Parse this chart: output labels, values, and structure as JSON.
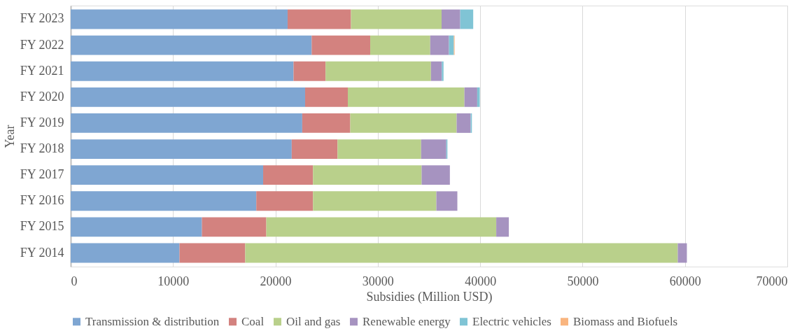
{
  "chart_data": {
    "type": "bar",
    "orientation": "horizontal",
    "stacked": true,
    "xlabel": "Subsidies (Million USD)",
    "ylabel": "Year",
    "categories": [
      "FY 2023",
      "FY 2022",
      "FY 2021",
      "FY 2020",
      "FY 2019",
      "FY 2018",
      "FY 2017",
      "FY 2016",
      "FY 2015",
      "FY 2014"
    ],
    "series": [
      {
        "name": "Transmission & distribution",
        "color": "#7fa6d2",
        "values": [
          21190,
          23540,
          21770,
          22900,
          22620,
          21590,
          18800,
          18130,
          12820,
          10630
        ]
      },
      {
        "name": "Coal",
        "color": "#d3827f",
        "values": [
          6190,
          5720,
          3130,
          4170,
          4690,
          4480,
          4870,
          5540,
          6290,
          6420
        ]
      },
      {
        "name": "Oil and gas",
        "color": "#b9d08b",
        "values": [
          8850,
          5860,
          10290,
          11390,
          10390,
          8160,
          10610,
          12050,
          22460,
          42250
        ]
      },
      {
        "name": "Renewable energy",
        "color": "#a693c0",
        "values": [
          1820,
          1830,
          1060,
          1250,
          1370,
          2460,
          2760,
          2050,
          1230,
          890
        ]
      },
      {
        "name": "Electric vehicles",
        "color": "#80c4d5",
        "values": [
          1270,
          480,
          170,
          250,
          120,
          110,
          null,
          null,
          null,
          null
        ]
      },
      {
        "name": "Biomass and Biofuels",
        "color": "#f9b57f",
        "values": [
          null,
          70,
          null,
          null,
          null,
          null,
          null,
          null,
          null,
          null
        ]
      }
    ],
    "xlim": [
      0,
      70000
    ],
    "xticks": [
      0,
      10000,
      20000,
      30000,
      40000,
      50000,
      60000,
      70000
    ],
    "grid": "x",
    "legend": "bottom"
  }
}
